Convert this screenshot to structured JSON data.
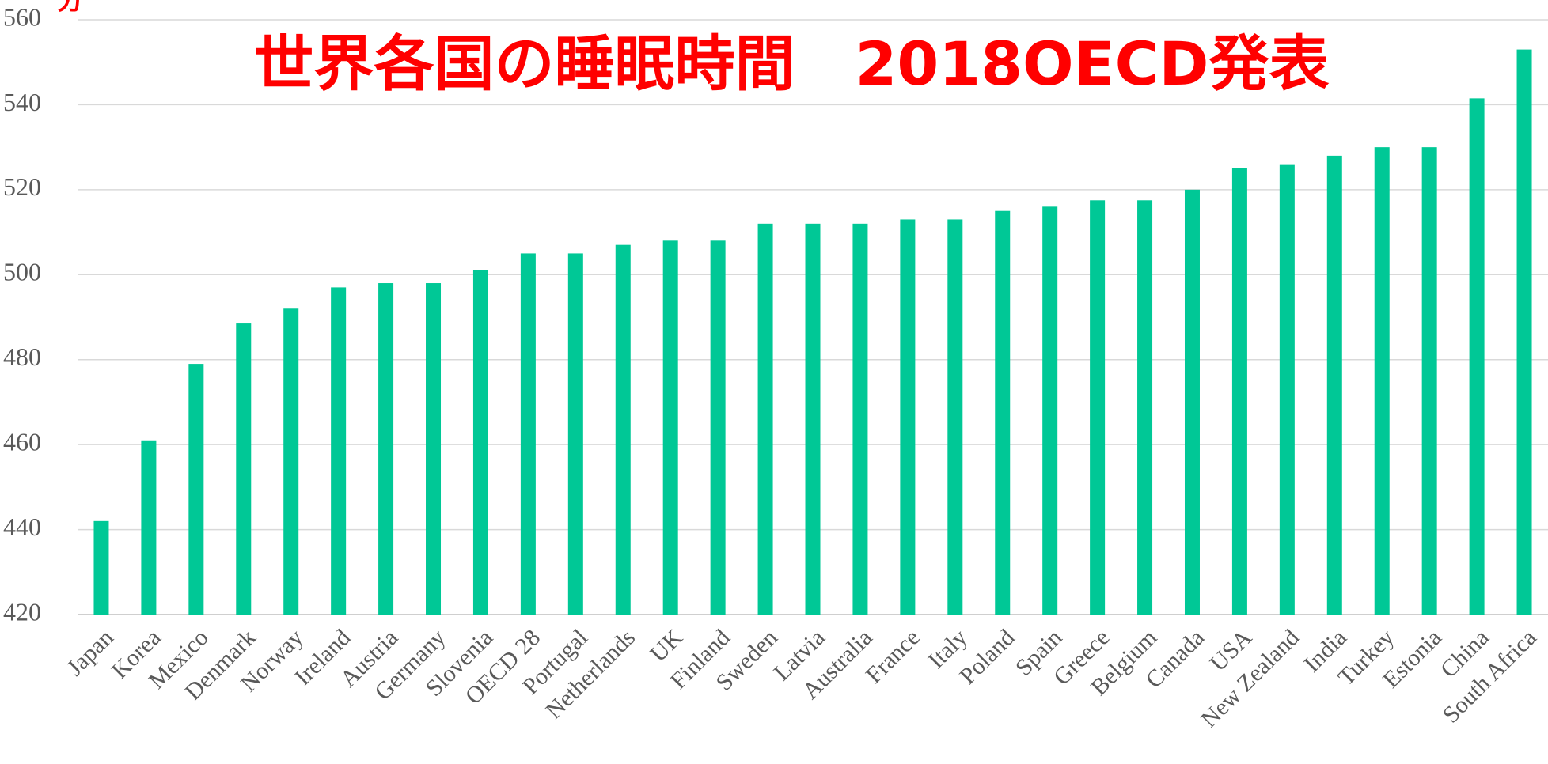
{
  "chart_data": {
    "type": "bar",
    "title": "世界各国の睡眠時間　2018OECD発表",
    "y_label": "分",
    "categories": [
      "Japan",
      "Korea",
      "Mexico",
      "Denmark",
      "Norway",
      "Ireland",
      "Austria",
      "Germany",
      "Slovenia",
      "OECD 28",
      "Portugal",
      "Netherlands",
      "UK",
      "Finland",
      "Sweden",
      "Latvia",
      "Australia",
      "France",
      "Italy",
      "Poland",
      "Spain",
      "Greece",
      "Belgium",
      "Canada",
      "USA",
      "New Zealand",
      "India",
      "Turkey",
      "Estonia",
      "China",
      "South Africa"
    ],
    "values": [
      442,
      461,
      479,
      488.5,
      492,
      497,
      498,
      498,
      501,
      505,
      505,
      507,
      508,
      508,
      512,
      512,
      512,
      513,
      513,
      515,
      516,
      517.5,
      517.5,
      520,
      525,
      526,
      528,
      530,
      530,
      541.5,
      553
    ],
    "color": "#00c896",
    "ylim": [
      420,
      560
    ],
    "yticks": [
      420,
      440,
      460,
      480,
      500,
      520,
      540,
      560
    ],
    "grid": true
  }
}
